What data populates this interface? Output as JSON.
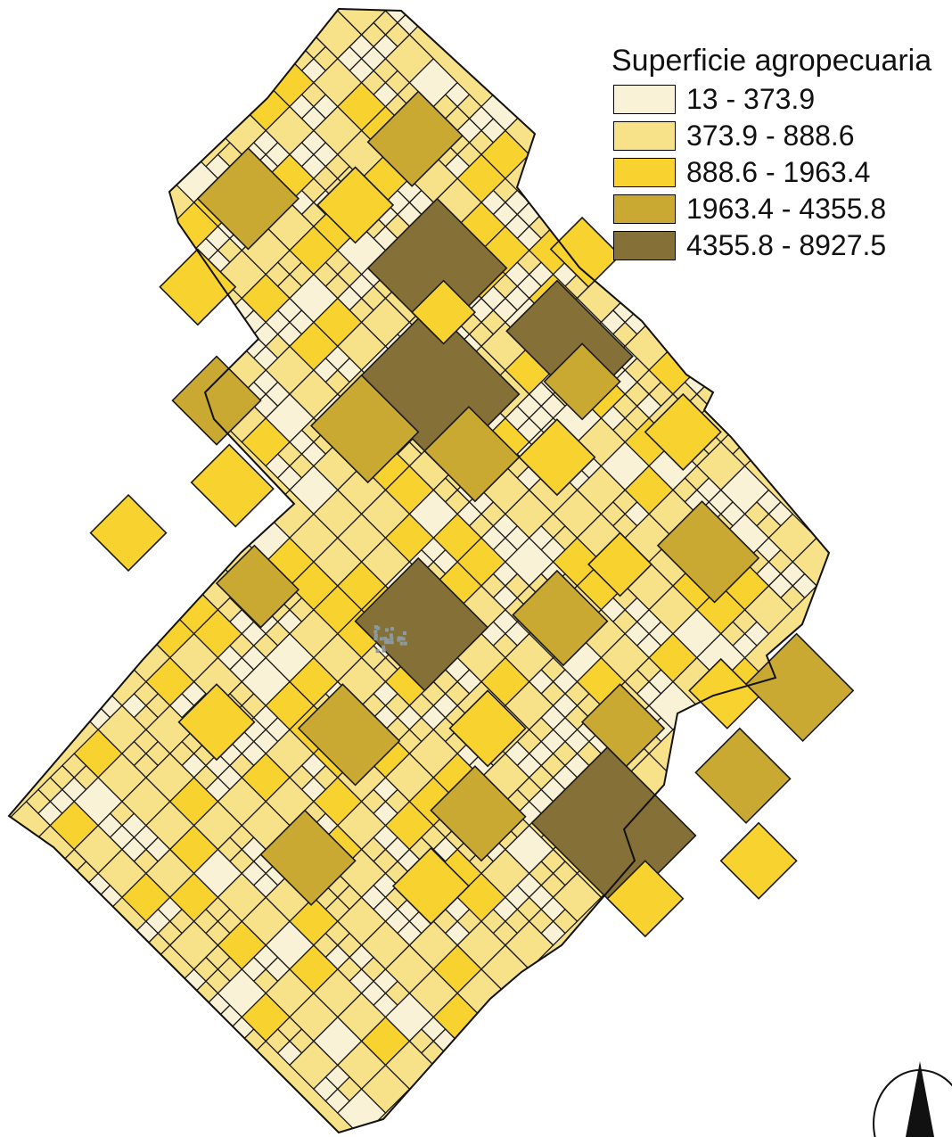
{
  "legend": {
    "title": "Superficie agropecuaria",
    "classes": [
      {
        "label": "13 - 373.9",
        "color": "#faf2d6"
      },
      {
        "label": "373.9 - 888.6",
        "color": "#f7e28a"
      },
      {
        "label": "888.6 - 1963.4",
        "color": "#f8d22e"
      },
      {
        "label": "1963.4 - 4355.8",
        "color": "#c9a931"
      },
      {
        "label": "4355.8 - 8927.5",
        "color": "#857038"
      }
    ]
  },
  "map": {
    "border_color": "#1a1a1a",
    "urban_color": "#8c9aa0"
  },
  "north_arrow": {
    "icon": "north-arrow-icon"
  }
}
